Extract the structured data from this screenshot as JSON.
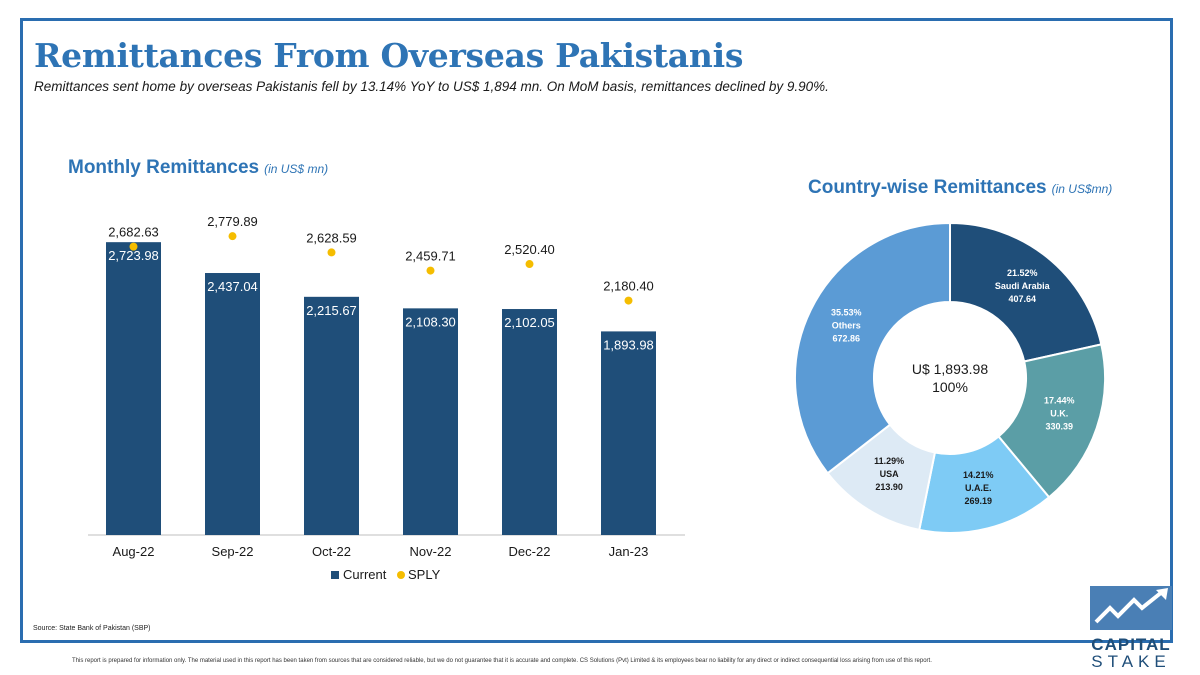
{
  "header": {
    "title": "Remittances From Overseas Pakistanis",
    "subtitle": "Remittances sent home by overseas Pakistanis fell by 13.14% YoY to US$ 1,894 mn. On MoM basis, remittances declined by 9.90%."
  },
  "left_panel": {
    "title": "Monthly Remittances",
    "unit": "(in US$ mn)"
  },
  "right_panel": {
    "title": "Country-wise Remittances",
    "unit": "(in US$mn)"
  },
  "footer": {
    "source": "Source: State Bank of Pakistan (SBP)",
    "disclaimer": "This report is prepared for information only. The material used in this report has been taken from sources that are considered reliable, but we do not guarantee that it is accurate and complete. CS Solutions (Pvt) Limited & its employees bear no liability for any direct or indirect consequential loss arising from use of this report."
  },
  "logo": {
    "line1": "CAPITAL",
    "line2": "STAKE"
  },
  "colors": {
    "accent": "#2e74b5",
    "bar": "#1f4e79",
    "sply_dot": "#f5bd00",
    "donut": [
      "#1f4e79",
      "#5b9ea6",
      "#7ecbf5",
      "#ddeaf5",
      "#5b9bd5"
    ]
  },
  "chart_data": [
    {
      "type": "bar",
      "categories": [
        "Aug-22",
        "Sep-22",
        "Oct-22",
        "Nov-22",
        "Dec-22",
        "Jan-23"
      ],
      "series": [
        {
          "name": "Current",
          "values": [
            2723.98,
            2437.04,
            2215.67,
            2108.3,
            2102.05,
            1893.98
          ],
          "labels": [
            "2,723.98",
            "2,437.04",
            "2,215.67",
            "2,108.30",
            "2,102.05",
            "1,893.98"
          ]
        },
        {
          "name": "SPLY",
          "values": [
            2682.63,
            2779.89,
            2628.59,
            2459.71,
            2520.4,
            2180.4
          ],
          "labels": [
            "2,682.63",
            "2,779.89",
            "2,628.59",
            "2,459.71",
            "2,520.40",
            "2,180.40"
          ]
        }
      ],
      "ylim": [
        0,
        3000
      ],
      "legend": "bottom"
    },
    {
      "type": "pie",
      "center_label": [
        "U$ 1,893.98",
        "100%"
      ],
      "slices": [
        {
          "name": "Saudi Arabia",
          "value": 407.64,
          "percent": "21.52%",
          "value_label": "407.64"
        },
        {
          "name": "U.K.",
          "value": 330.39,
          "percent": "17.44%",
          "value_label": "330.39"
        },
        {
          "name": "U.A.E.",
          "value": 269.19,
          "percent": "14.21%",
          "value_label": "269.19"
        },
        {
          "name": "USA",
          "value": 213.9,
          "percent": "11.29%",
          "value_label": "213.90"
        },
        {
          "name": "Others",
          "value": 672.86,
          "percent": "35.53%",
          "value_label": "672.86"
        }
      ]
    }
  ]
}
